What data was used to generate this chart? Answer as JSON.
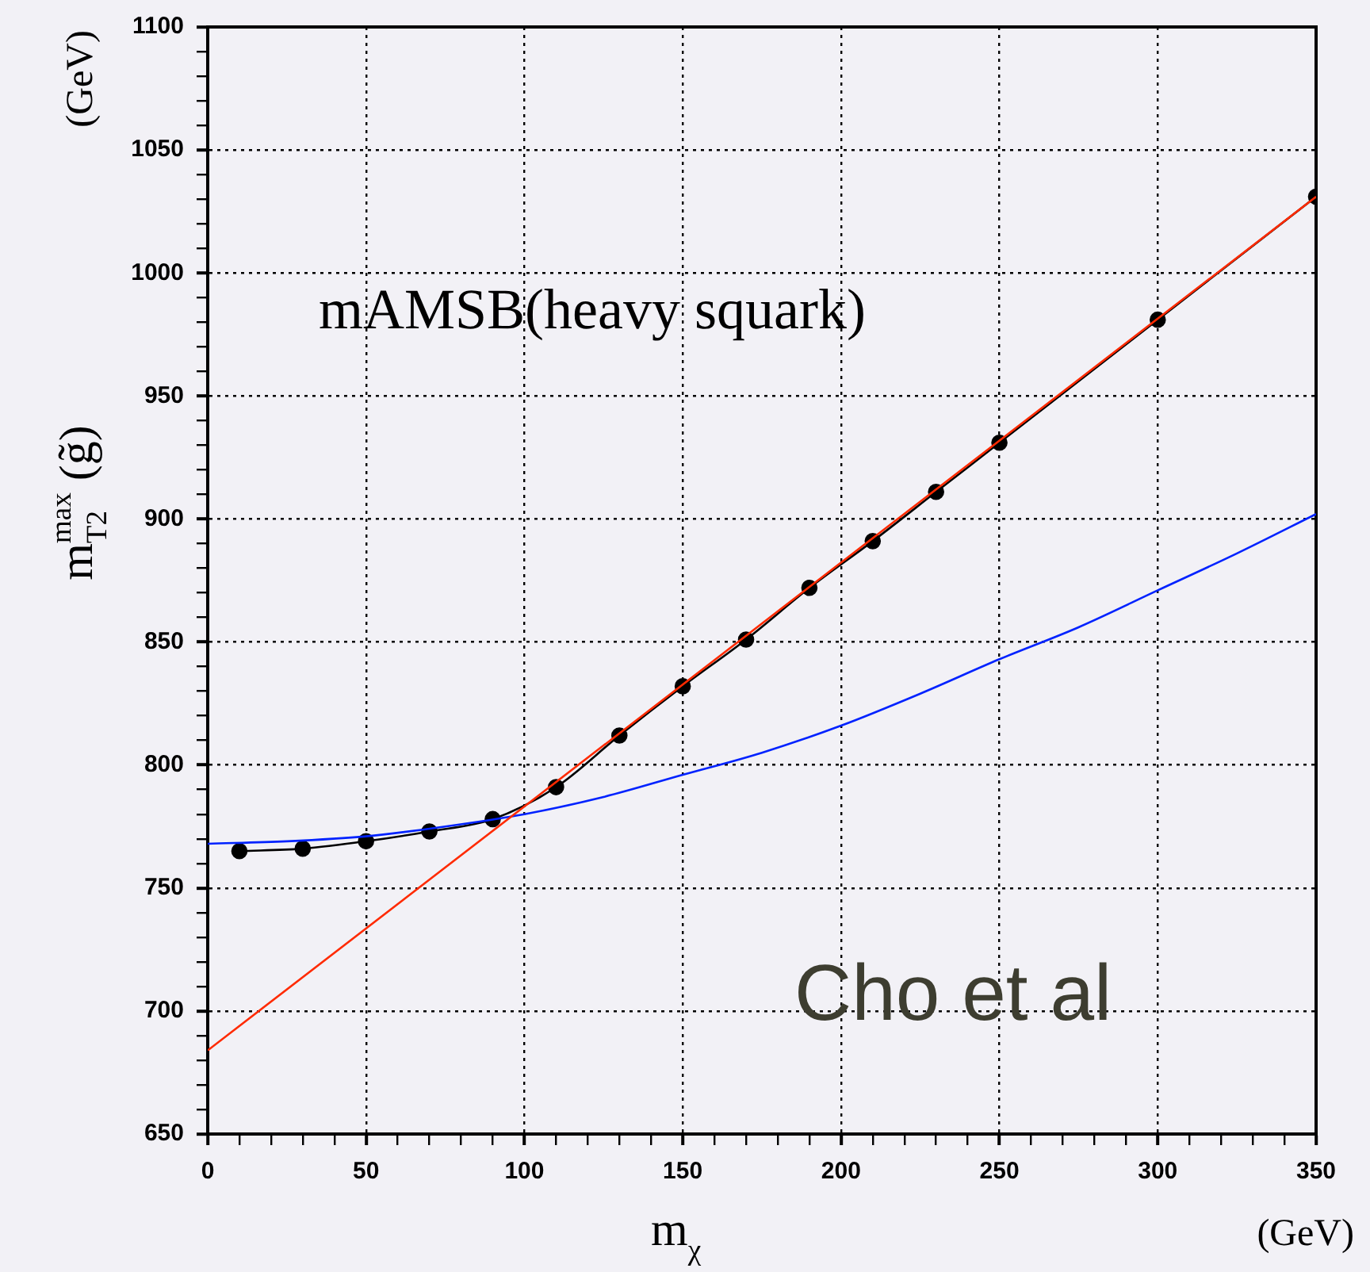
{
  "chart_data": {
    "type": "line",
    "xlabel": "m$_{χ}$",
    "ylabel": "m$_{T2}$$^{max}$ (g̃)",
    "annotations": [
      "mAMSB(heavy squark)",
      "Cho et al",
      "(GeV)",
      "(GeV)"
    ],
    "xlim": [
      0,
      350
    ],
    "ylim": [
      650,
      1100
    ],
    "xticks": [
      0,
      {
        "value": 10,
        "label": null
      },
      {
        "value": 20,
        "label": null
      },
      {
        "value": 30,
        "label": null
      },
      {
        "value": 40,
        "label": null
      },
      50,
      {
        "value": 60,
        "label": null
      },
      {
        "value": 70,
        "label": null
      },
      {
        "value": 80,
        "label": null
      },
      {
        "value": 90,
        "label": null
      },
      100,
      {
        "value": 110,
        "label": null
      },
      {
        "value": 120,
        "label": null
      },
      {
        "value": 130,
        "label": null
      },
      {
        "value": 140,
        "label": null
      },
      150,
      {
        "value": 160,
        "label": null
      },
      {
        "value": 170,
        "label": null
      },
      {
        "value": 180,
        "label": null
      },
      {
        "value": 190,
        "label": null
      },
      200,
      {
        "value": 210,
        "label": null
      },
      {
        "value": 220,
        "label": null
      },
      {
        "value": 230,
        "label": null
      },
      {
        "value": 240,
        "label": null
      },
      250,
      {
        "value": 260,
        "label": null
      },
      {
        "value": 270,
        "label": null
      },
      {
        "value": 280,
        "label": null
      },
      {
        "value": 290,
        "label": null
      },
      300,
      {
        "value": 310,
        "label": null
      },
      {
        "value": 320,
        "label": null
      },
      {
        "value": 330,
        "label": null
      },
      {
        "value": 340,
        "label": null
      },
      350
    ],
    "yticks": [
      650,
      {
        "value": 660,
        "label": null
      },
      {
        "value": 670,
        "label": null
      },
      {
        "value": 680,
        "label": null
      },
      {
        "value": 690,
        "label": null
      },
      700,
      {
        "value": 710,
        "label": null
      },
      {
        "value": 720,
        "label": null
      },
      {
        "value": 730,
        "label": null
      },
      {
        "value": 740,
        "label": null
      },
      750,
      {
        "value": 760,
        "label": null
      },
      {
        "value": 770,
        "label": null
      },
      {
        "value": 780,
        "label": null
      },
      {
        "value": 790,
        "label": null
      },
      800,
      {
        "value": 810,
        "label": null
      },
      {
        "value": 820,
        "label": null
      },
      {
        "value": 830,
        "label": null
      },
      {
        "value": 840,
        "label": null
      },
      850,
      {
        "value": 860,
        "label": null
      },
      {
        "value": 870,
        "label": null
      },
      {
        "value": 880,
        "label": null
      },
      {
        "value": 890,
        "label": null
      },
      900,
      {
        "value": 910,
        "label": null
      },
      {
        "value": 920,
        "label": null
      },
      {
        "value": 930,
        "label": null
      },
      {
        "value": 940,
        "label": null
      },
      950,
      {
        "value": 960,
        "label": null
      },
      {
        "value": 970,
        "label": null
      },
      {
        "value": 980,
        "label": null
      },
      {
        "value": 990,
        "label": null
      },
      1000,
      {
        "value": 1010,
        "label": null
      },
      {
        "value": 1020,
        "label": null
      },
      {
        "value": 1030,
        "label": null
      },
      {
        "value": 1040,
        "label": null
      },
      1050,
      {
        "value": 1060,
        "label": null
      },
      {
        "value": 1070,
        "label": null
      },
      {
        "value": 1080,
        "label": null
      },
      {
        "value": 1090,
        "label": null
      },
      1100
    ],
    "grid": true,
    "line_style": "solid",
    "series": [
      {
        "type": "line",
        "color": "#000000",
        "marker": "circle",
        "x": [
          10,
          30,
          50,
          70,
          90,
          110,
          130,
          150,
          170,
          190,
          210,
          230,
          250,
          300,
          350
        ],
        "values": [
          765,
          766,
          769,
          773,
          778,
          791,
          812,
          832,
          851,
          872,
          891,
          911,
          931,
          981,
          1031
        ]
      },
      {
        "type": "line",
        "color": "#ff2a00",
        "marker": "none",
        "x": [
          0,
          350
        ],
        "values": [
          684,
          1031
        ]
      },
      {
        "type": "line",
        "color": "#0022ff",
        "marker": "none",
        "x": [
          0,
          25,
          50,
          75,
          100,
          125,
          150,
          175,
          200,
          225,
          250,
          275,
          300,
          325,
          350
        ],
        "values": [
          768,
          769,
          771,
          775,
          780,
          787,
          796,
          805,
          816,
          829,
          843,
          856,
          871,
          886,
          902
        ]
      }
    ]
  }
}
